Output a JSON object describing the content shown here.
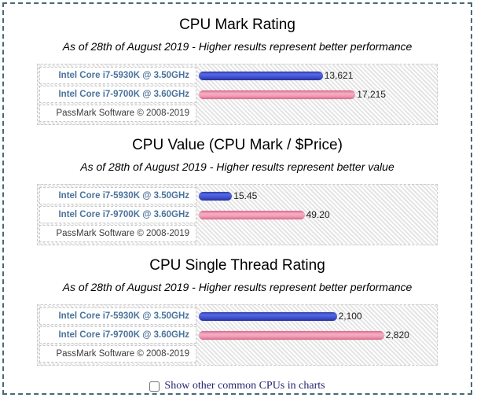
{
  "page": {
    "border_color": "#476a76",
    "background": "#ffffff"
  },
  "colors": {
    "bar_blue": "#4253d2",
    "bar_pink": "#f09cb4",
    "cpu_label_blue": "#4b739b",
    "footer_text": "#3c3c3c"
  },
  "chart_data": [
    {
      "type": "bar",
      "title": "CPU Mark Rating",
      "subtitle": "As of 28th of August 2019 - Higher results represent better performance",
      "categories": [
        "Intel Core i7-5930K @ 3.50GHz",
        "Intel Core i7-9700K @ 3.60GHz"
      ],
      "values": [
        13621,
        17215
      ],
      "value_labels": [
        "13,621",
        "17,215"
      ],
      "bar_colors": [
        "blue",
        "pink"
      ],
      "xlim": [
        0,
        26000
      ],
      "orientation": "horizontal",
      "footer": "PassMark Software © 2008-2019"
    },
    {
      "type": "bar",
      "title": "CPU Value (CPU Mark / $Price)",
      "subtitle": "As of 28th of August 2019 - Higher results represent better value",
      "categories": [
        "Intel Core i7-5930K @ 3.50GHz",
        "Intel Core i7-9700K @ 3.60GHz"
      ],
      "values": [
        15.45,
        49.2
      ],
      "value_labels": [
        "15.45",
        "49.20"
      ],
      "bar_colors": [
        "blue",
        "pink"
      ],
      "xlim": [
        0,
        110
      ],
      "orientation": "horizontal",
      "footer": "PassMark Software © 2008-2019"
    },
    {
      "type": "bar",
      "title": "CPU Single Thread Rating",
      "subtitle": "As of 28th of August 2019 - Higher results represent better performance",
      "categories": [
        "Intel Core i7-5930K @ 3.50GHz",
        "Intel Core i7-9700K @ 3.60GHz"
      ],
      "values": [
        2100,
        2820
      ],
      "value_labels": [
        "2,100",
        "2,820"
      ],
      "bar_colors": [
        "blue",
        "pink"
      ],
      "xlim": [
        0,
        3600
      ],
      "orientation": "horizontal",
      "footer": "PassMark Software © 2008-2019"
    }
  ],
  "checkbox": {
    "label": "Show other common CPUs in charts",
    "checked": false
  }
}
